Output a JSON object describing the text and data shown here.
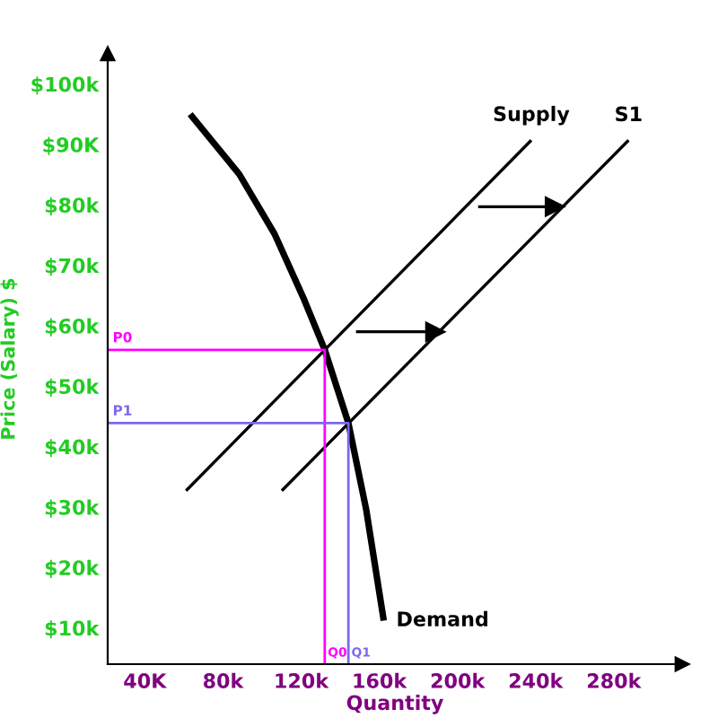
{
  "chart_data": {
    "type": "line",
    "xlabel": "Quantity",
    "ylabel": "Price (Salary) $",
    "xlim": [
      21,
      315
    ],
    "ylim": [
      4,
      105
    ],
    "xticks": [
      {
        "value": 40,
        "label": "40K"
      },
      {
        "value": 80,
        "label": "80k"
      },
      {
        "value": 120,
        "label": "120k"
      },
      {
        "value": 160,
        "label": "160k"
      },
      {
        "value": 200,
        "label": "200k"
      },
      {
        "value": 240,
        "label": "240k"
      },
      {
        "value": 280,
        "label": "280k"
      }
    ],
    "yticks": [
      {
        "value": 10,
        "label": "$10k"
      },
      {
        "value": 20,
        "label": "$20k"
      },
      {
        "value": 30,
        "label": "$30k"
      },
      {
        "value": 40,
        "label": "$40k"
      },
      {
        "value": 50,
        "label": "$50k"
      },
      {
        "value": 60,
        "label": "$60k"
      },
      {
        "value": 70,
        "label": "$70k"
      },
      {
        "value": 80,
        "label": "$80k"
      },
      {
        "value": 90,
        "label": "$90K"
      },
      {
        "value": 100,
        "label": "$100k"
      }
    ],
    "grid": false,
    "legend": false,
    "marker": "none",
    "series": [
      {
        "name": "Demand",
        "color": "#000000",
        "x": [
          63.2,
          88.3,
          106.4,
          121.6,
          132.1,
          144.2,
          153.3,
          162.3
        ],
        "values": [
          95.0,
          85.1,
          75.2,
          64.3,
          56.0,
          43.9,
          29.6,
          11.2
        ]
      },
      {
        "name": "Supply",
        "color": "#000000",
        "x": [
          61.1,
          237.8
        ],
        "values": [
          32.7,
          90.7
        ]
      },
      {
        "name": "S1",
        "color": "#000000",
        "x": [
          110.1,
          287.6
        ],
        "values": [
          32.7,
          90.7
        ]
      },
      {
        "color": "#ff00ff",
        "x": [
          21,
          132.1,
          132.1
        ],
        "values": [
          56.0,
          56.0,
          4
        ]
      },
      {
        "color": "#7b68ee",
        "x": [
          21,
          144.2,
          144.2
        ],
        "values": [
          43.9,
          43.9,
          4
        ]
      },
      {
        "color": "#000000",
        "marker": "triangle",
        "x": [
          210.6,
          249.8
        ],
        "values": [
          79.7,
          79.7
        ]
      },
      {
        "color": "#000000",
        "marker": "triangle",
        "x": [
          148.1,
          188.6
        ],
        "values": [
          59.0,
          59.0
        ]
      }
    ],
    "annotations": [
      {
        "text": "P0",
        "x": 21,
        "y": 56.0
      },
      {
        "text": "Q0",
        "x": 132.1,
        "y": 4
      },
      {
        "text": "P1",
        "x": 21,
        "y": 43.9
      },
      {
        "text": "Q1",
        "x": 144.2,
        "y": 4
      }
    ]
  }
}
